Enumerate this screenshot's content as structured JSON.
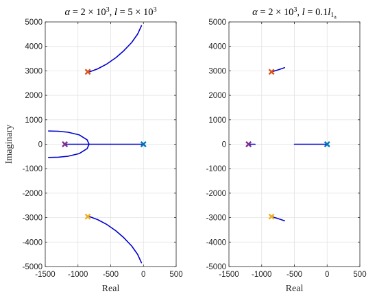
{
  "chart_data": [
    {
      "type": "line",
      "title_parts": [
        {
          "t": "α",
          "it": true
        },
        {
          "t": " = 2 × 10"
        },
        {
          "t": "3",
          "sup": true
        },
        {
          "t": ", "
        },
        {
          "t": "l",
          "it": true
        },
        {
          "t": " = 5 × 10"
        },
        {
          "t": "3",
          "sup": true
        }
      ],
      "xlabel": "Real",
      "ylabel": "Imaginary",
      "xlim": [
        -1500,
        500
      ],
      "ylim": [
        -5000,
        5000
      ],
      "xticks": [
        -1500,
        -1000,
        -500,
        0,
        500
      ],
      "yticks": [
        -5000,
        -4000,
        -3000,
        -2000,
        -1000,
        0,
        1000,
        2000,
        3000,
        4000,
        5000
      ],
      "grid": true,
      "loci": [
        {
          "x": [
            -820,
            -700,
            -560,
            -420,
            -300,
            -180,
            -90,
            -30
          ],
          "y": [
            2960,
            3080,
            3280,
            3540,
            3820,
            4160,
            4500,
            4850
          ]
        },
        {
          "x": [
            -820,
            -700,
            -560,
            -420,
            -300,
            -180,
            -90,
            -30
          ],
          "y": [
            -2960,
            -3080,
            -3280,
            -3540,
            -3820,
            -4160,
            -4500,
            -4850
          ]
        },
        {
          "x": [
            -1200,
            -1000,
            -880,
            -830
          ],
          "y": [
            0,
            0,
            0,
            0
          ]
        },
        {
          "x": [
            -830,
            0
          ],
          "y": [
            0,
            0
          ]
        },
        {
          "x": [
            -830,
            -860,
            -980,
            -1150,
            -1300,
            -1450
          ],
          "y": [
            0,
            180,
            380,
            490,
            530,
            540
          ]
        },
        {
          "x": [
            -830,
            -860,
            -980,
            -1150,
            -1300,
            -1450
          ],
          "y": [
            0,
            -180,
            -380,
            -490,
            -530,
            -540
          ]
        }
      ],
      "poles": [
        {
          "x": -850,
          "y": 2960,
          "color": "#D95319"
        },
        {
          "x": -850,
          "y": -2960,
          "color": "#EDB120"
        },
        {
          "x": -1200,
          "y": 0,
          "color": "#7E2F8E"
        },
        {
          "x": 0,
          "y": 0,
          "color": "#0072BD"
        }
      ],
      "locus_color": "#0000CC"
    },
    {
      "type": "line",
      "title_parts": [
        {
          "t": "α",
          "it": true
        },
        {
          "t": " = 2 × 10"
        },
        {
          "t": "3",
          "sup": true
        },
        {
          "t": ", "
        },
        {
          "t": "l",
          "it": true
        },
        {
          "t": " = 0.1"
        },
        {
          "t": "l",
          "it": true
        },
        {
          "t": "1",
          "sub": true
        },
        {
          "t": "a",
          "subsub": true
        }
      ],
      "xlabel": "Real",
      "ylabel": "",
      "xlim": [
        -1500,
        500
      ],
      "ylim": [
        -5000,
        5000
      ],
      "xticks": [
        -1500,
        -1000,
        -500,
        0,
        500
      ],
      "yticks": [
        -5000,
        -4000,
        -3000,
        -2000,
        -1000,
        0,
        1000,
        2000,
        3000,
        4000,
        5000
      ],
      "grid": true,
      "loci": [
        {
          "x": [
            -850,
            -750,
            -650
          ],
          "y": [
            2960,
            3040,
            3130
          ]
        },
        {
          "x": [
            -850,
            -750,
            -650
          ],
          "y": [
            -2960,
            -3040,
            -3130
          ]
        },
        {
          "x": [
            -1200,
            -1100
          ],
          "y": [
            0,
            0
          ]
        },
        {
          "x": [
            -500,
            0
          ],
          "y": [
            0,
            0
          ]
        }
      ],
      "poles": [
        {
          "x": -850,
          "y": 2960,
          "color": "#D95319"
        },
        {
          "x": -850,
          "y": -2960,
          "color": "#EDB120"
        },
        {
          "x": -1200,
          "y": 0,
          "color": "#7E2F8E"
        },
        {
          "x": 0,
          "y": 0,
          "color": "#0072BD"
        }
      ],
      "locus_color": "#0000CC"
    }
  ]
}
